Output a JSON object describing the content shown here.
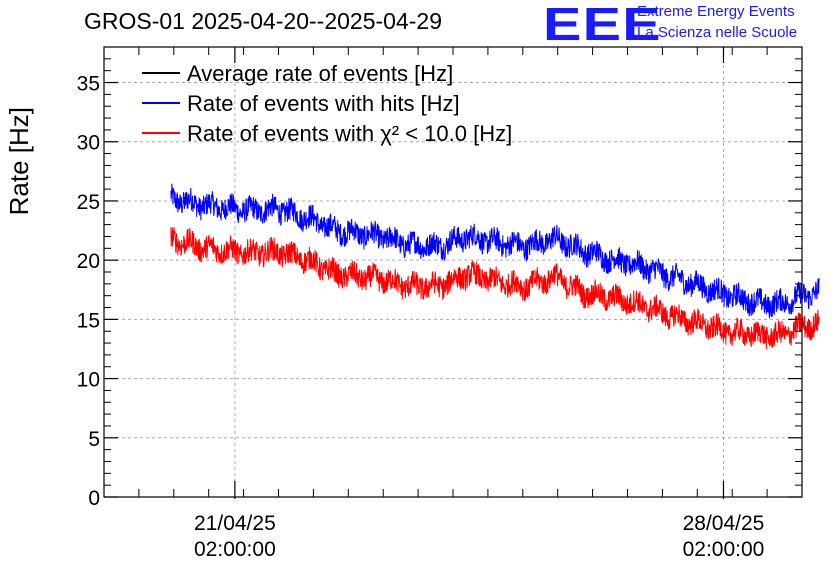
{
  "header": {
    "title": "GROS-01 2025-04-20--2025-04-29",
    "logo_text": "EEE",
    "logo_line1": "Extreme Energy Events",
    "logo_line2": "La Scienza nelle Scuole"
  },
  "chart_data": {
    "type": "line",
    "title": "GROS-01 2025-04-20--2025-04-29",
    "xlabel": "",
    "ylabel": "Rate [Hz]",
    "ylim": [
      0,
      38
    ],
    "xlim_hours": [
      0,
      240
    ],
    "yticks": [
      0,
      5,
      10,
      15,
      20,
      25,
      30,
      35
    ],
    "xticks": [
      {
        "hours": 45,
        "date": "21/04/25",
        "time": "02:00:00"
      },
      {
        "hours": 213,
        "date": "28/04/25",
        "time": "02:00:00"
      }
    ],
    "grid": true,
    "legend_position": "top-left",
    "legend": [
      {
        "label": "Average rate of events [Hz]",
        "color": "#000000"
      },
      {
        "label": "Rate of events with hits [Hz]",
        "color": "#0000ff"
      },
      {
        "label": "Rate of events with χ² < 10.0 [Hz]",
        "color": "#ff0000"
      }
    ],
    "series": [
      {
        "name": "Rate of events with hits [Hz]",
        "color": "#0000ff",
        "noise": 1.0,
        "points": [
          [
            23,
            25.2
          ],
          [
            35,
            24.6
          ],
          [
            50,
            24.2
          ],
          [
            60,
            24.3
          ],
          [
            70,
            23.6
          ],
          [
            80,
            22.5
          ],
          [
            95,
            22.0
          ],
          [
            105,
            21.3
          ],
          [
            115,
            21.2
          ],
          [
            125,
            22.0
          ],
          [
            135,
            21.5
          ],
          [
            145,
            21.2
          ],
          [
            155,
            21.8
          ],
          [
            165,
            20.8
          ],
          [
            175,
            20.0
          ],
          [
            185,
            19.5
          ],
          [
            195,
            18.6
          ],
          [
            205,
            17.8
          ],
          [
            215,
            17.0
          ],
          [
            225,
            16.4
          ],
          [
            232,
            16.3
          ],
          [
            240,
            17.0
          ],
          [
            246,
            17.3
          ]
        ]
      },
      {
        "name": "Rate of events with χ² < 10.0 [Hz]",
        "color": "#ff0000",
        "noise": 1.0,
        "points": [
          [
            23,
            21.8
          ],
          [
            35,
            21.0
          ],
          [
            50,
            20.6
          ],
          [
            60,
            20.7
          ],
          [
            70,
            20.0
          ],
          [
            80,
            18.8
          ],
          [
            95,
            18.4
          ],
          [
            105,
            17.8
          ],
          [
            115,
            17.8
          ],
          [
            125,
            18.8
          ],
          [
            135,
            18.2
          ],
          [
            145,
            17.8
          ],
          [
            155,
            18.6
          ],
          [
            165,
            17.2
          ],
          [
            175,
            16.8
          ],
          [
            185,
            16.2
          ],
          [
            195,
            15.3
          ],
          [
            205,
            14.6
          ],
          [
            215,
            13.9
          ],
          [
            225,
            13.7
          ],
          [
            232,
            13.6
          ],
          [
            240,
            14.4
          ],
          [
            246,
            14.6
          ]
        ]
      }
    ]
  }
}
